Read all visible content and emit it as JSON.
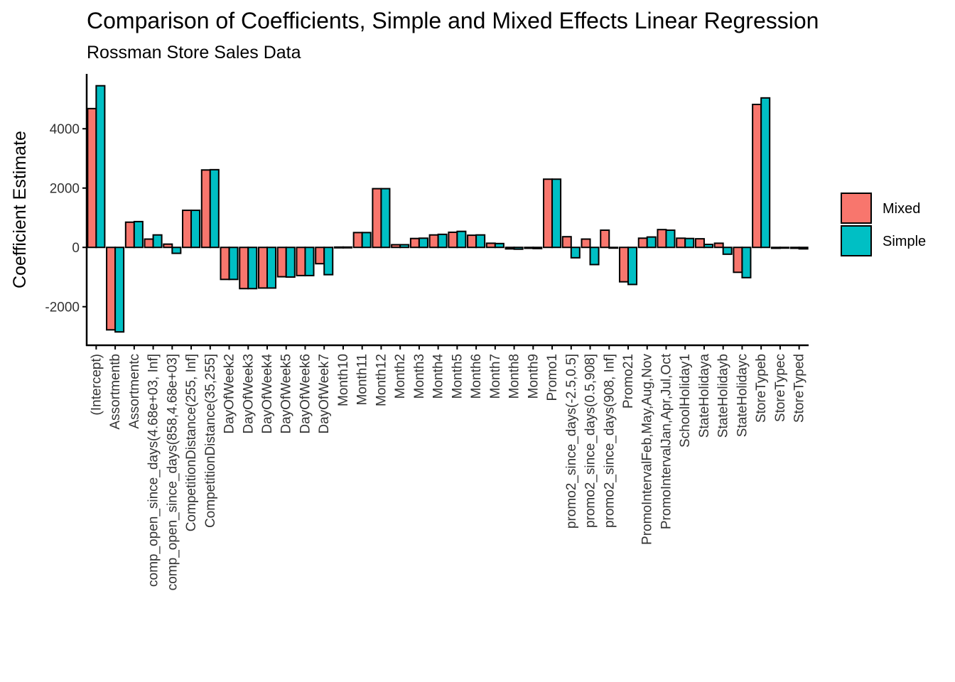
{
  "chart_data": {
    "type": "bar",
    "title": "Comparison of Coefficients, Simple and Mixed Effects Linear Regression",
    "subtitle": "Rossman Store Sales Data",
    "xlabel": "",
    "ylabel": "Coefficient Estimate",
    "ylim": [
      -3300,
      5850
    ],
    "yticks": [
      -2000,
      0,
      2000,
      4000
    ],
    "ytick_labels": [
      "-2000",
      "0",
      "2000",
      "4000"
    ],
    "grid": false,
    "legend_position": "right",
    "categories": [
      "(Intercept)",
      "Assortmentb",
      "Assortmentc",
      "comp_open_since_days(4.68e+03, Inf]",
      "comp_open_since_days(858,4.68e+03]",
      "CompetitionDistance(255, Inf]",
      "CompetitionDistance(35,255]",
      "DayOfWeek2",
      "DayOfWeek3",
      "DayOfWeek4",
      "DayOfWeek5",
      "DayOfWeek6",
      "DayOfWeek7",
      "Month10",
      "Month11",
      "Month12",
      "Month2",
      "Month3",
      "Month4",
      "Month5",
      "Month6",
      "Month7",
      "Month8",
      "Month9",
      "Promo1",
      "promo2_since_days(-2.5,0.5]",
      "promo2_since_days(0.5,908]",
      "promo2_since_days(908, Inf]",
      "Promo21",
      "PromoIntervalFeb,May,Aug,Nov",
      "PromoIntervalJan,Apr,Jul,Oct",
      "SchoolHoliday1",
      "StateHolidaya",
      "StateHolidayb",
      "StateHolidayc",
      "StoreTypeb",
      "StoreTypec",
      "StoreTyped"
    ],
    "series": [
      {
        "name": "Mixed",
        "color": "#F8766D",
        "values": [
          4680,
          -2780,
          850,
          280,
          110,
          1250,
          2610,
          -1080,
          -1390,
          -1370,
          -990,
          -950,
          -550,
          10,
          500,
          1980,
          90,
          300,
          420,
          510,
          410,
          140,
          -50,
          -30,
          2300,
          360,
          280,
          580,
          -1160,
          310,
          600,
          310,
          290,
          140,
          -840,
          4820,
          -30,
          -30
        ]
      },
      {
        "name": "Simple",
        "color": "#00BFC4",
        "values": [
          5450,
          -2850,
          870,
          420,
          -200,
          1250,
          2620,
          -1080,
          -1390,
          -1370,
          -1000,
          -950,
          -920,
          10,
          500,
          1980,
          90,
          310,
          440,
          540,
          420,
          130,
          -60,
          -40,
          2300,
          -350,
          -580,
          -20,
          -1250,
          350,
          580,
          300,
          100,
          -230,
          -1020,
          5040,
          -10,
          -50
        ]
      }
    ]
  },
  "colors": {
    "bar_outline": "#000000",
    "axis": "#000000",
    "tick_text": "#333333"
  }
}
